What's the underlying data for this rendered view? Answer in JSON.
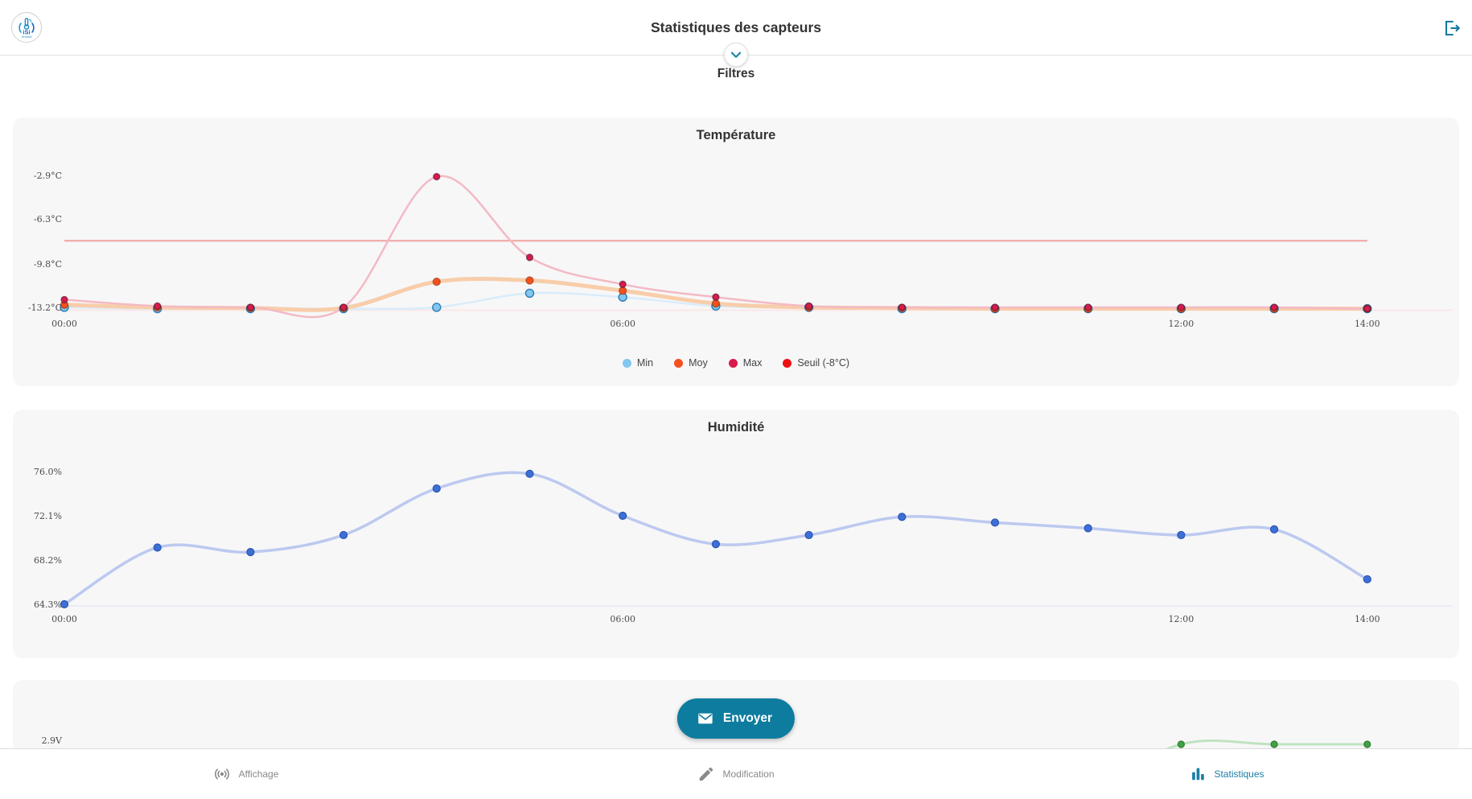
{
  "header": {
    "title": "Statistiques des capteurs",
    "logo_text_line1": "iSi",
    "logo_text_line2": "Sentinel"
  },
  "filters": {
    "title": "Filtres"
  },
  "accent_color": "#0E7C9F",
  "send_button": {
    "label": "Envoyer"
  },
  "bottom_nav": {
    "active_color": "#1A7FA5",
    "inactive_color": "#8A8A8A",
    "items": [
      {
        "label": "Affichage",
        "icon": "broadcast-icon",
        "active": false
      },
      {
        "label": "Modification",
        "icon": "pencil-icon",
        "active": false
      },
      {
        "label": "Statistiques",
        "icon": "bar-chart-icon",
        "active": true
      }
    ]
  },
  "chart_data": [
    {
      "type": "line",
      "title": "Température",
      "x": [
        "00:00",
        "01:00",
        "02:00",
        "03:00",
        "04:00",
        "05:00",
        "06:00",
        "07:00",
        "08:00",
        "09:00",
        "10:00",
        "11:00",
        "12:00",
        "13:00",
        "14:00"
      ],
      "x_ticks_shown": [
        {
          "label": "00:00",
          "hour": 0
        },
        {
          "label": "06:00",
          "hour": 6
        },
        {
          "label": "12:00",
          "hour": 12
        },
        {
          "label": "14:00",
          "hour": 14
        }
      ],
      "y_ticks": [
        "-2.9°C",
        "-6.3°C",
        "-9.8°C",
        "-13.2°C"
      ],
      "y_tick_values": [
        -2.9,
        -6.3,
        -9.8,
        -13.2
      ],
      "ylim": [
        -13.8,
        -1.5
      ],
      "xlabel": "",
      "ylabel": "",
      "grid": false,
      "legend_position": "bottom",
      "series": [
        {
          "name": "Min",
          "color": "#81C7F0",
          "line_color": "#D9ECFA",
          "values": [
            -13.2,
            -13.3,
            -13.3,
            -13.3,
            -13.2,
            -12.1,
            -12.4,
            -13.1,
            -13.2,
            -13.3,
            -13.3,
            -13.3,
            -13.3,
            -13.3,
            -13.3
          ]
        },
        {
          "name": "Moy",
          "color": "#F4511E",
          "line_color": "#F8CDAA",
          "values": [
            -13.0,
            -13.2,
            -13.25,
            -13.25,
            -11.2,
            -11.1,
            -11.9,
            -12.9,
            -13.2,
            -13.25,
            -13.3,
            -13.3,
            -13.3,
            -13.3,
            -13.3
          ]
        },
        {
          "name": "Max",
          "color": "#D81B4C",
          "line_color": "#F3BAC4",
          "values": [
            -12.6,
            -13.1,
            -13.2,
            -13.2,
            -3.0,
            -9.3,
            -11.4,
            -12.4,
            -13.1,
            -13.2,
            -13.2,
            -13.2,
            -13.2,
            -13.2,
            -13.3
          ]
        }
      ],
      "threshold": {
        "label": "Seuil (-8°C)",
        "value": -8,
        "color": "#EE1111",
        "line_color": "#F2A3A3"
      }
    },
    {
      "type": "line",
      "title": "Humidité",
      "x": [
        "00:00",
        "01:00",
        "02:00",
        "03:00",
        "04:00",
        "05:00",
        "06:00",
        "07:00",
        "08:00",
        "09:00",
        "10:00",
        "11:00",
        "12:00",
        "13:00",
        "14:00"
      ],
      "x_ticks_shown": [
        {
          "label": "00:00",
          "hour": 0
        },
        {
          "label": "06:00",
          "hour": 6
        },
        {
          "label": "12:00",
          "hour": 12
        },
        {
          "label": "14:00",
          "hour": 14
        }
      ],
      "y_ticks": [
        "76.0%",
        "72.1%",
        "68.2%",
        "64.3%"
      ],
      "y_tick_values": [
        76.0,
        72.1,
        68.2,
        64.3
      ],
      "ylim": [
        63.6,
        76.9
      ],
      "xlabel": "",
      "ylabel": "",
      "grid": false,
      "series": [
        {
          "name": "Humidité",
          "color": "#3D6FD6",
          "line_color": "#BCC9EF",
          "values": [
            64.3,
            69.3,
            68.9,
            70.4,
            74.5,
            75.8,
            72.1,
            69.6,
            70.4,
            72.0,
            71.5,
            71.0,
            70.4,
            70.9,
            66.5
          ]
        }
      ]
    },
    {
      "type": "line",
      "title": "",
      "partially_visible": true,
      "y_ticks": [
        "2.9V"
      ],
      "y_tick_values": [
        2.9
      ],
      "series": [
        {
          "color": "#43A047",
          "line_color": "#BFE3C0",
          "visible_points": [
            {
              "time": "12:00",
              "value": 2.9
            },
            {
              "time": "13:00",
              "value": 2.9
            },
            {
              "time": "14:00",
              "value": 2.9
            }
          ]
        }
      ]
    }
  ]
}
